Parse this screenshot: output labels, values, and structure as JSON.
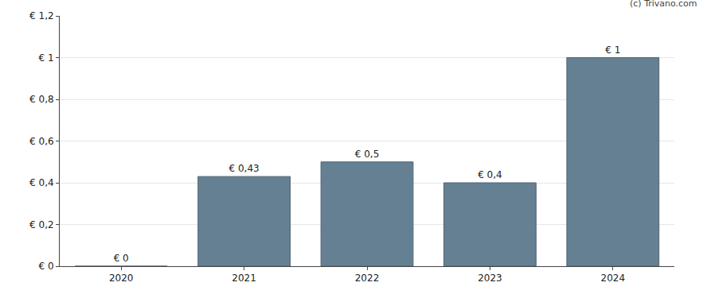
{
  "chart_data": {
    "type": "bar",
    "categories": [
      "2020",
      "2021",
      "2022",
      "2023",
      "2024"
    ],
    "values": [
      0,
      0.43,
      0.5,
      0.4,
      1
    ],
    "value_labels": [
      "€ 0",
      "€ 0,43",
      "€ 0,5",
      "€ 0,4",
      "€ 1"
    ],
    "data_labels": true,
    "color": "#657f93",
    "ylim": [
      0,
      1.2
    ],
    "yticks": [
      {
        "value": 0,
        "label": "€ 0"
      },
      {
        "value": 0.2,
        "label": "€ 0,2"
      },
      {
        "value": 0.4,
        "label": "€ 0,4"
      },
      {
        "value": 0.6,
        "label": "€ 0,6"
      },
      {
        "value": 0.8,
        "label": "€ 0,8"
      },
      {
        "value": 1,
        "label": "€ 1"
      },
      {
        "value": 1.2,
        "label": "€ 1,2"
      }
    ],
    "grid": true,
    "annotation": "(c) Trivano.com"
  }
}
